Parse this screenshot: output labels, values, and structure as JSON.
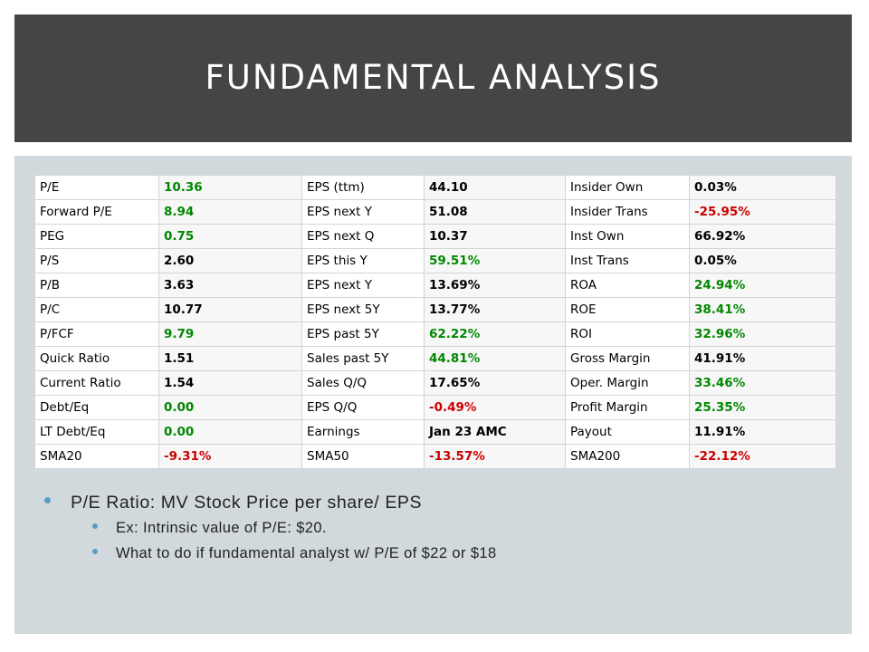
{
  "slide": {
    "title": "FUNDAMENTAL ANALYSIS"
  },
  "colors": {
    "header_bg": "#454545",
    "content_bg": "#d1d9dd",
    "positive": "#008800",
    "negative": "#cc0000",
    "bullet": "#5a9dbf"
  },
  "table": {
    "rows": [
      [
        {
          "l": "P/E",
          "v": "10.36",
          "c": "pos"
        },
        {
          "l": "EPS (ttm)",
          "v": "44.10",
          "c": ""
        },
        {
          "l": "Insider Own",
          "v": "0.03%",
          "c": ""
        }
      ],
      [
        {
          "l": "Forward P/E",
          "v": "8.94",
          "c": "pos"
        },
        {
          "l": "EPS next Y",
          "v": "51.08",
          "c": ""
        },
        {
          "l": "Insider Trans",
          "v": "-25.95%",
          "c": "neg"
        }
      ],
      [
        {
          "l": "PEG",
          "v": "0.75",
          "c": "pos"
        },
        {
          "l": "EPS next Q",
          "v": "10.37",
          "c": ""
        },
        {
          "l": "Inst Own",
          "v": "66.92%",
          "c": ""
        }
      ],
      [
        {
          "l": "P/S",
          "v": "2.60",
          "c": ""
        },
        {
          "l": "EPS this Y",
          "v": "59.51%",
          "c": "pos"
        },
        {
          "l": "Inst Trans",
          "v": "0.05%",
          "c": ""
        }
      ],
      [
        {
          "l": "P/B",
          "v": "3.63",
          "c": ""
        },
        {
          "l": "EPS next Y",
          "v": "13.69%",
          "c": ""
        },
        {
          "l": "ROA",
          "v": "24.94%",
          "c": "pos"
        }
      ],
      [
        {
          "l": "P/C",
          "v": "10.77",
          "c": ""
        },
        {
          "l": "EPS next 5Y",
          "v": "13.77%",
          "c": ""
        },
        {
          "l": "ROE",
          "v": "38.41%",
          "c": "pos"
        }
      ],
      [
        {
          "l": "P/FCF",
          "v": "9.79",
          "c": "pos"
        },
        {
          "l": "EPS past 5Y",
          "v": "62.22%",
          "c": "pos"
        },
        {
          "l": "ROI",
          "v": "32.96%",
          "c": "pos"
        }
      ],
      [
        {
          "l": "Quick Ratio",
          "v": "1.51",
          "c": ""
        },
        {
          "l": "Sales past 5Y",
          "v": "44.81%",
          "c": "pos"
        },
        {
          "l": "Gross Margin",
          "v": "41.91%",
          "c": ""
        }
      ],
      [
        {
          "l": "Current Ratio",
          "v": "1.54",
          "c": ""
        },
        {
          "l": "Sales Q/Q",
          "v": "17.65%",
          "c": ""
        },
        {
          "l": "Oper. Margin",
          "v": "33.46%",
          "c": "pos"
        }
      ],
      [
        {
          "l": "Debt/Eq",
          "v": "0.00",
          "c": "pos"
        },
        {
          "l": "EPS Q/Q",
          "v": "-0.49%",
          "c": "neg"
        },
        {
          "l": "Profit Margin",
          "v": "25.35%",
          "c": "pos"
        }
      ],
      [
        {
          "l": "LT Debt/Eq",
          "v": "0.00",
          "c": "pos"
        },
        {
          "l": "Earnings",
          "v": "Jan 23 AMC",
          "c": ""
        },
        {
          "l": "Payout",
          "v": "11.91%",
          "c": ""
        }
      ],
      [
        {
          "l": "SMA20",
          "v": "-9.31%",
          "c": "neg"
        },
        {
          "l": "SMA50",
          "v": "-13.57%",
          "c": "neg"
        },
        {
          "l": "SMA200",
          "v": "-22.12%",
          "c": "neg"
        }
      ]
    ]
  },
  "bullets": {
    "main": "P/E Ratio: MV Stock Price per share/ EPS",
    "sub1": "Ex: Intrinsic value of P/E: $20.",
    "sub2": "What to do if fundamental  analyst w/ P/E of $22 or $18"
  }
}
